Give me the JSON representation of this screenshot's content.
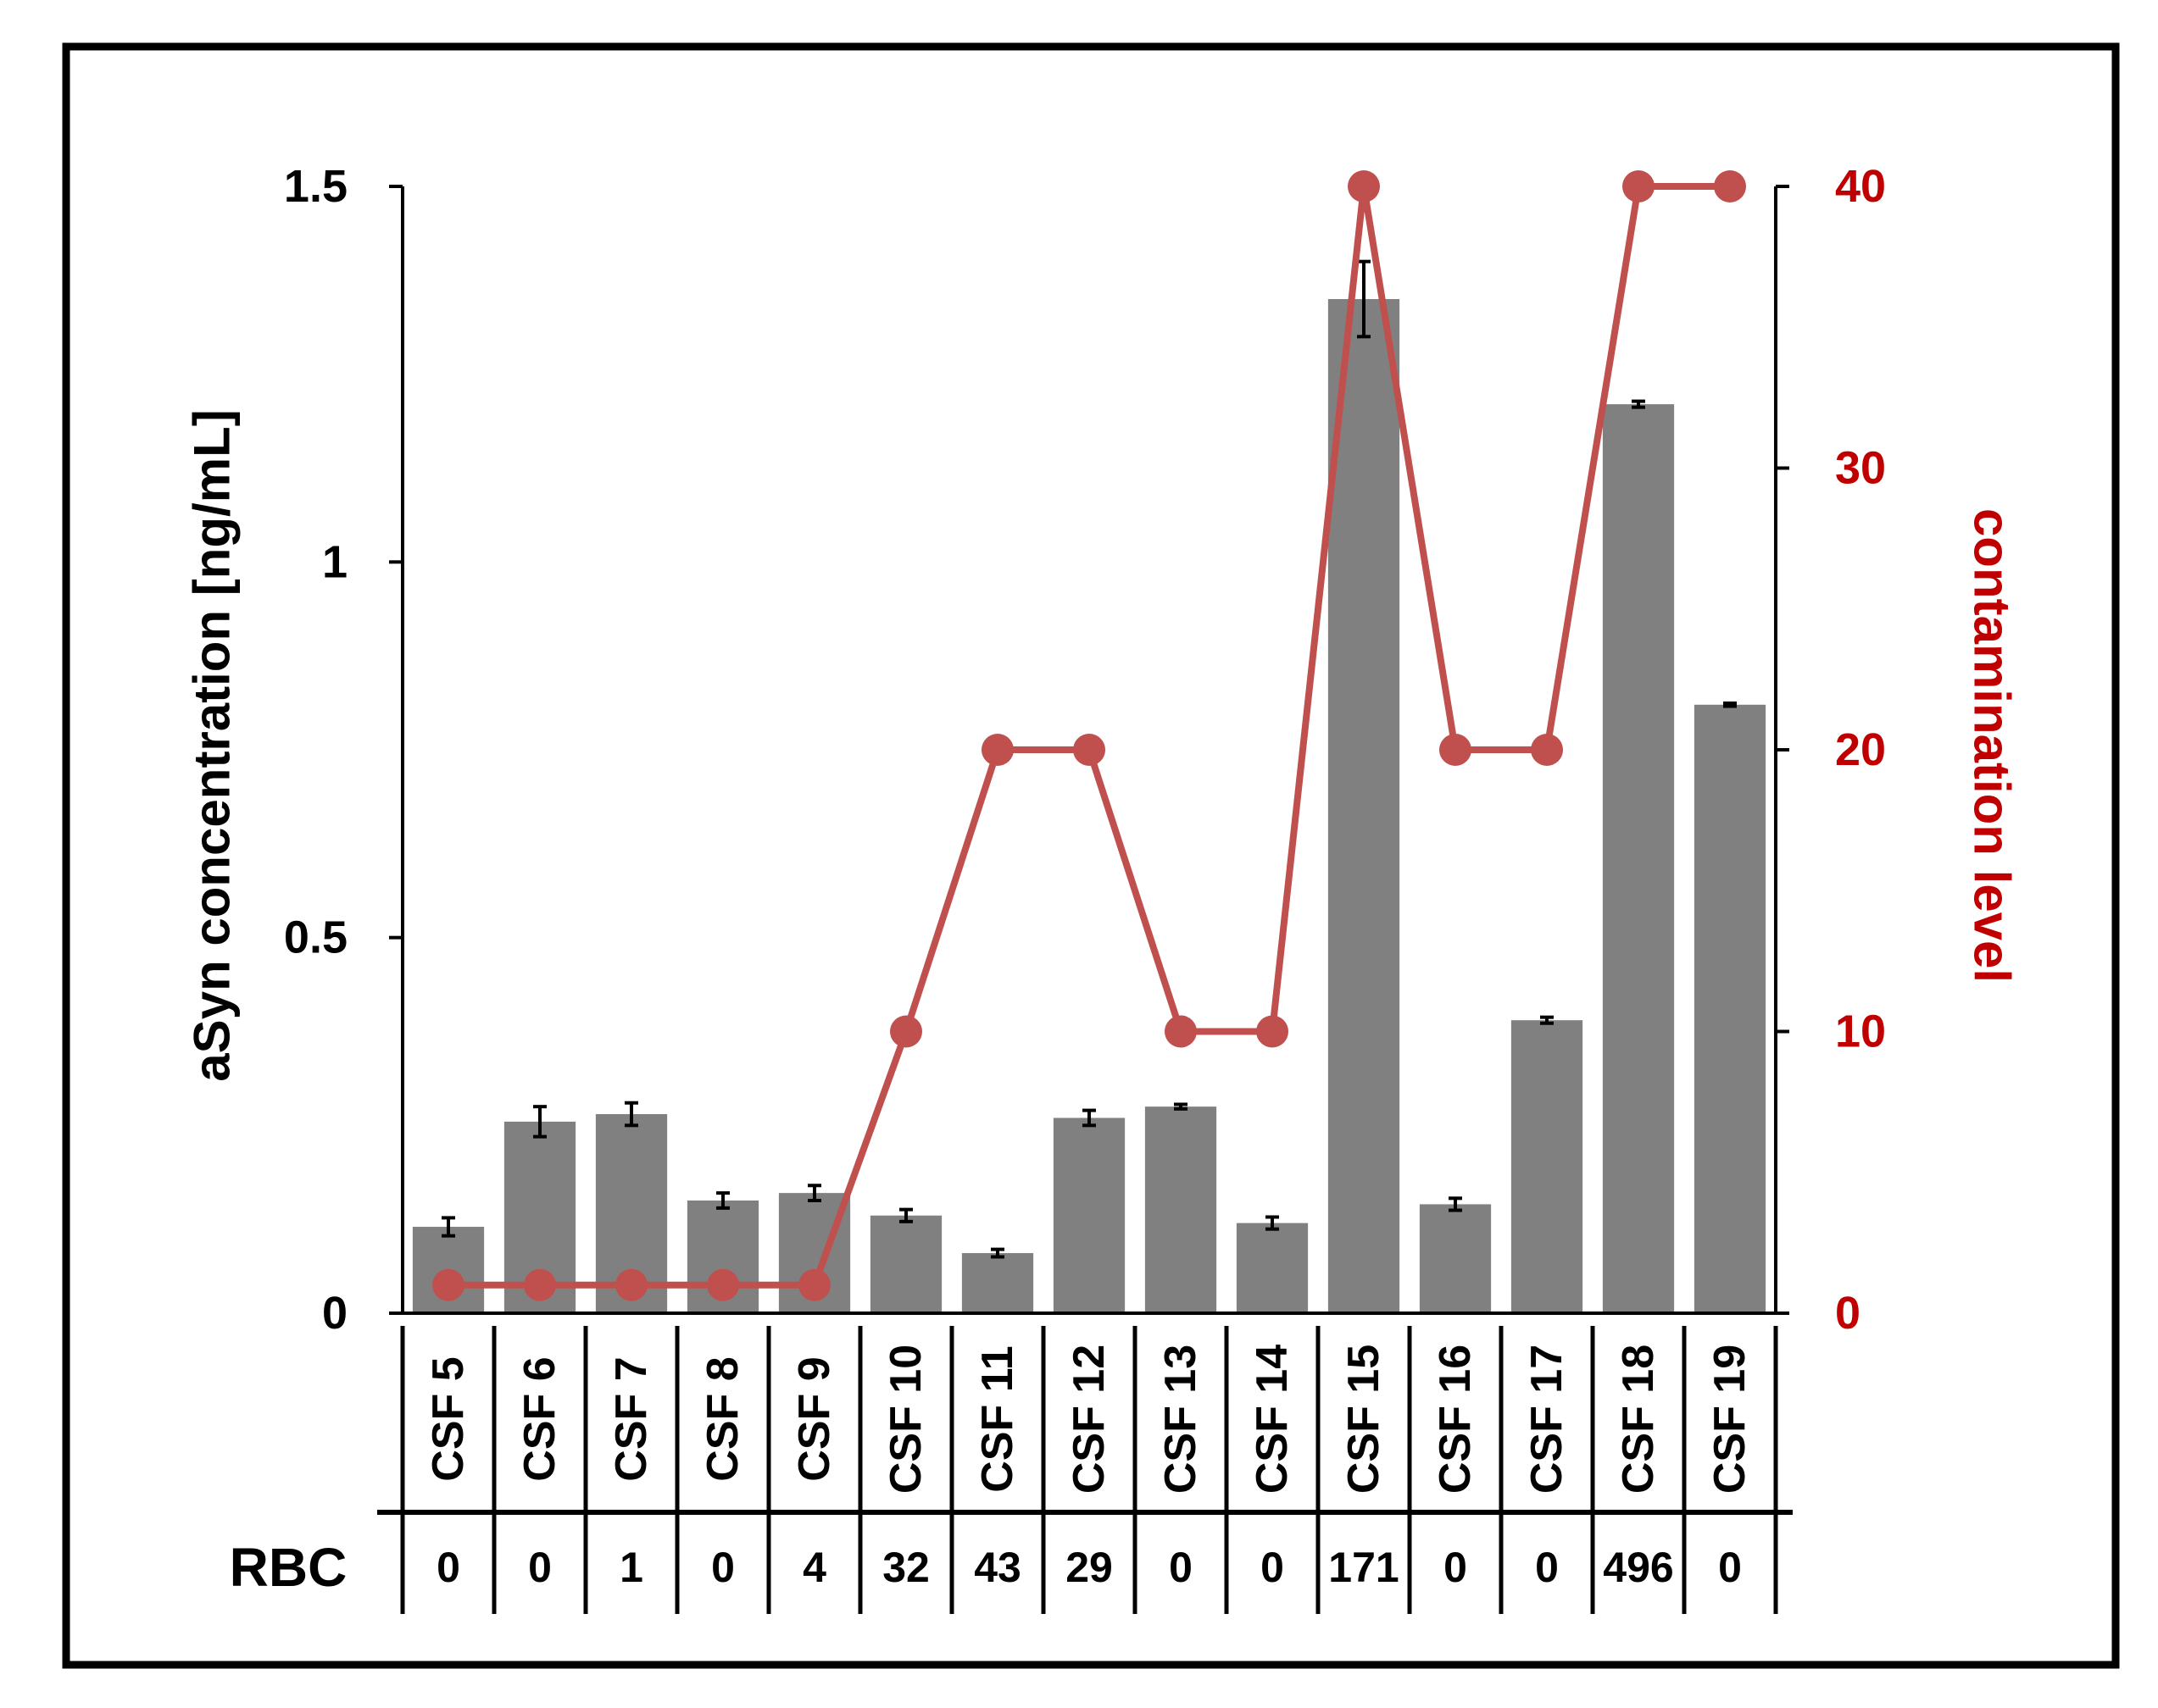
{
  "chart_data": {
    "type": "bar",
    "categories": [
      "CSF 5",
      "CSF 6",
      "CSF 7",
      "CSF 8",
      "CSF 9",
      "CSF 10",
      "CSF 11",
      "CSF 12",
      "CSF 13",
      "CSF 14",
      "CSF 15",
      "CSF 16",
      "CSF 17",
      "CSF 18",
      "CSF 19"
    ],
    "series": [
      {
        "kind": "bar",
        "axis": "left",
        "values": [
          0.115,
          0.255,
          0.265,
          0.15,
          0.16,
          0.13,
          0.08,
          0.26,
          0.275,
          0.12,
          1.35,
          0.145,
          0.39,
          1.21,
          0.81
        ],
        "errors": [
          0.012,
          0.02,
          0.015,
          0.01,
          0.01,
          0.008,
          0.005,
          0.01,
          0.003,
          0.008,
          0.05,
          0.008,
          0.004,
          0.004,
          0.002
        ],
        "color": "#808080"
      },
      {
        "kind": "line",
        "axis": "right",
        "values": [
          1,
          1,
          1,
          1,
          1,
          10,
          20,
          20,
          10,
          10,
          40,
          20,
          20,
          40,
          40
        ],
        "color": "#c0504d"
      }
    ],
    "ylabel": "aSyn concentration [ng/mL]",
    "ylabel_right": "contamination level",
    "ylim": [
      0,
      1.5
    ],
    "ylim_right": [
      0,
      40
    ],
    "yticks": [
      "0",
      "0.5",
      "1",
      "1.5"
    ],
    "yticks_right": [
      "0",
      "10",
      "20",
      "30",
      "40"
    ],
    "right_axis_color": "#c00000",
    "table": {
      "row_label": "RBC",
      "values": [
        "0",
        "0",
        "1",
        "0",
        "4",
        "32",
        "43",
        "29",
        "0",
        "0",
        "171",
        "0",
        "0",
        "496",
        "0"
      ]
    }
  }
}
